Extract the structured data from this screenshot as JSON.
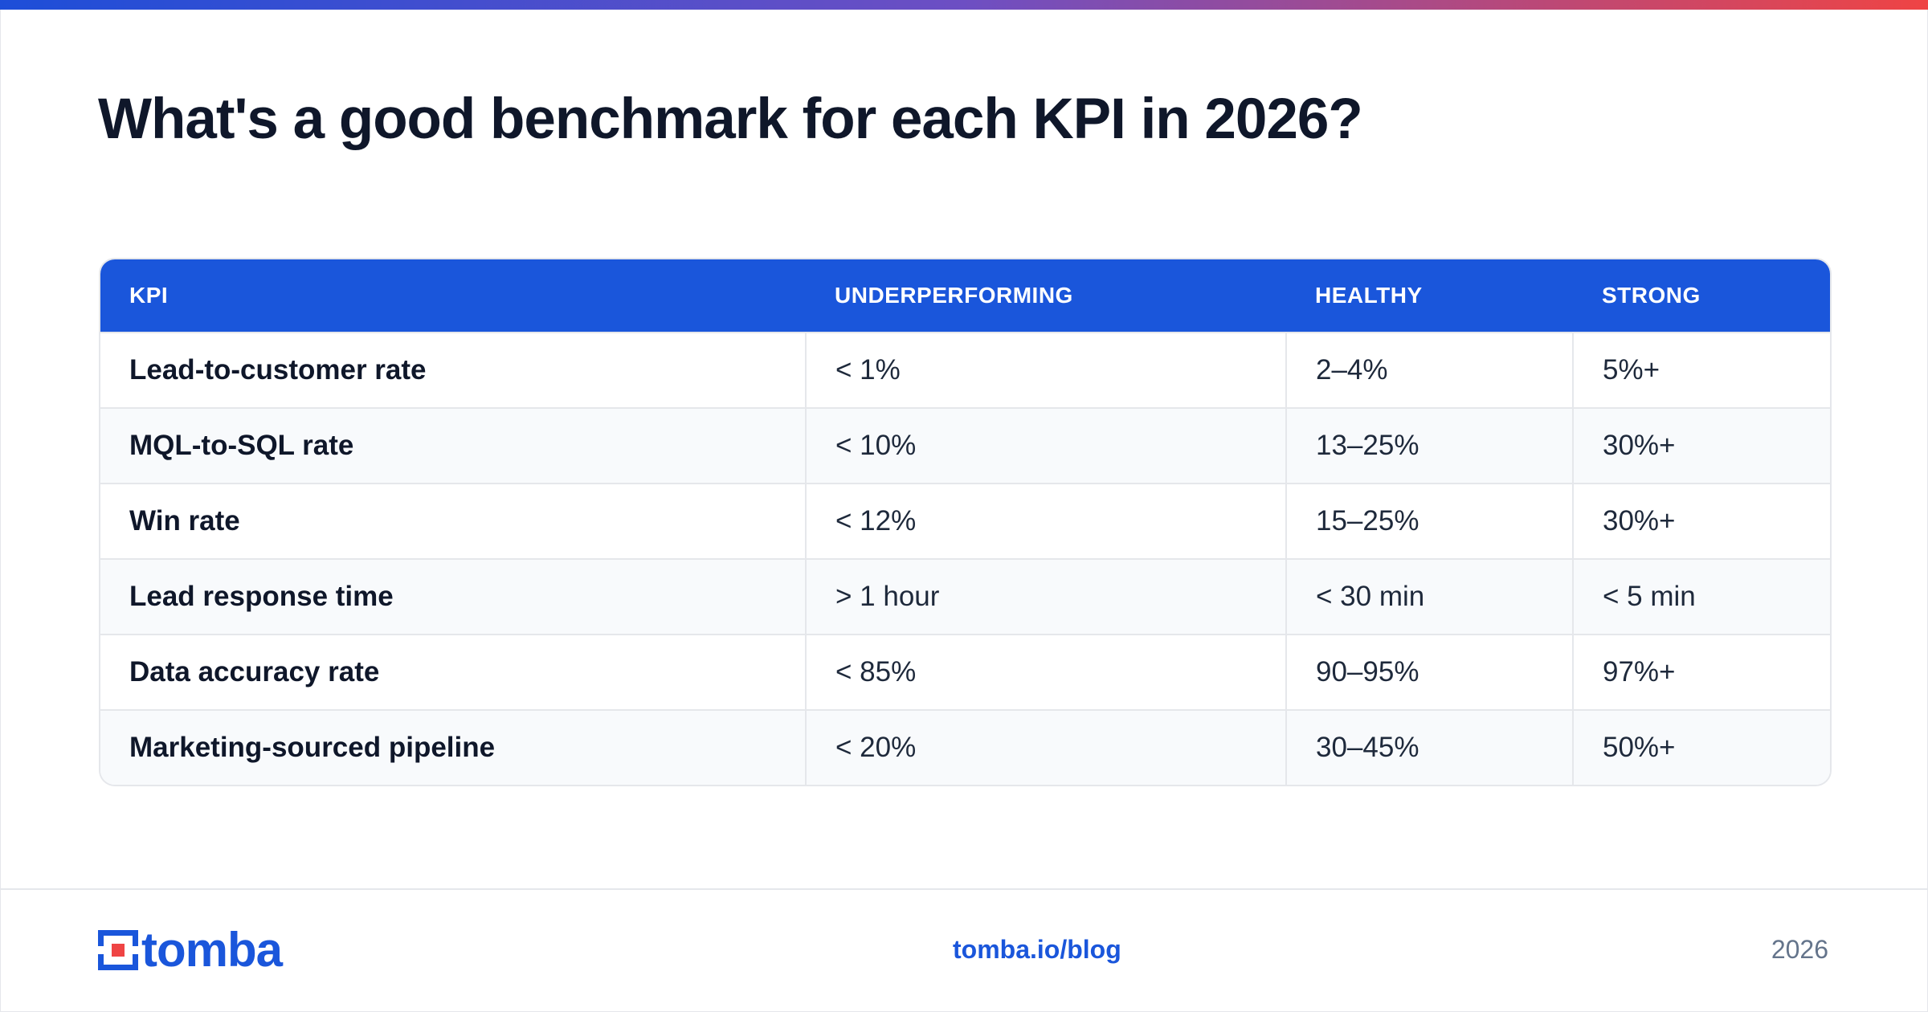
{
  "title": "What's a good benchmark for each KPI in 2026?",
  "table": {
    "headers": [
      "KPI",
      "UNDERPERFORMING",
      "HEALTHY",
      "STRONG"
    ],
    "rows": [
      [
        "Lead-to-customer rate",
        "< 1%",
        "2–4%",
        "5%+"
      ],
      [
        "MQL-to-SQL rate",
        "< 10%",
        "13–25%",
        "30%+"
      ],
      [
        "Win rate",
        "< 12%",
        "15–25%",
        "30%+"
      ],
      [
        "Lead response time",
        "> 1 hour",
        "< 30 min",
        "< 5 min"
      ],
      [
        "Data accuracy rate",
        "< 85%",
        "90–95%",
        "97%+"
      ],
      [
        "Marketing-sourced pipeline",
        "< 20%",
        "30–45%",
        "50%+"
      ]
    ]
  },
  "footer": {
    "logo_text": "tomba",
    "logo_icon": "tomba-logo-mark-icon",
    "link": "tomba.io/blog",
    "year": "2026"
  },
  "colors": {
    "brand_blue": "#1a56db",
    "accent_red": "#ef4444",
    "gradient_start": "#1d4ed8",
    "gradient_end": "#ef4444"
  }
}
